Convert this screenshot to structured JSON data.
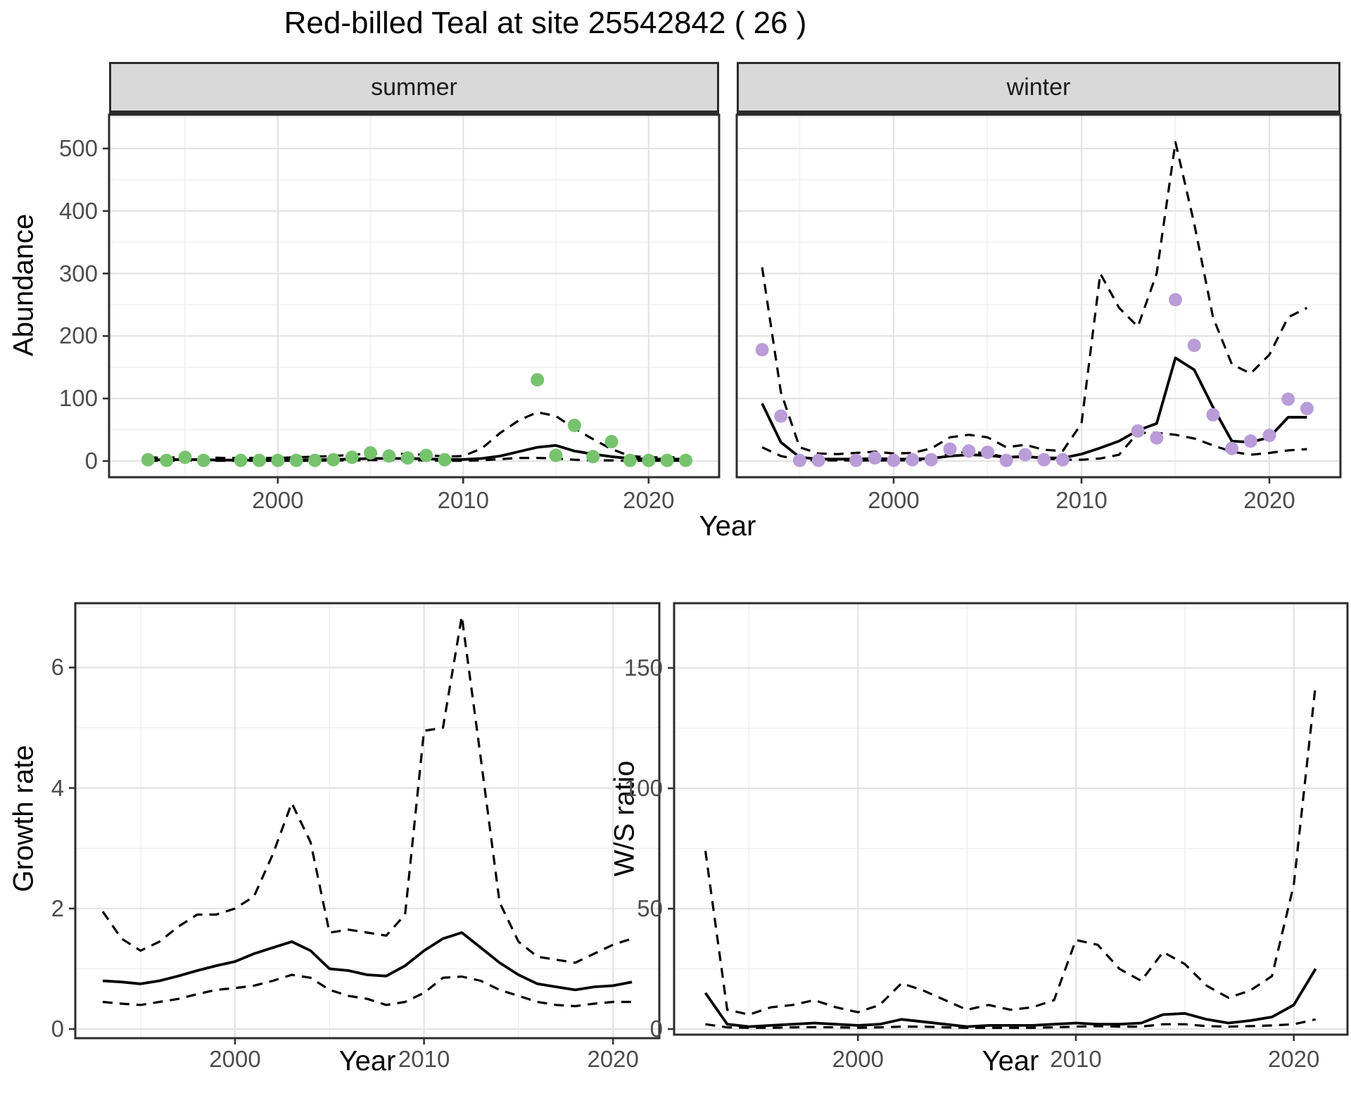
{
  "title": "Red-billed Teal at site 25542842 ( 26 )",
  "xlabel": "Year",
  "colors": {
    "summer_point": "#76c36d",
    "winter_point": "#b99cd8",
    "line": "#000000",
    "strip_bg": "#d9d9d9",
    "panel_border": "#2b2b2b",
    "grid_major": "#e3e3e3",
    "grid_minor": "#f0f0f0",
    "tick_text": "#4d4d4d"
  },
  "chart_data": [
    {
      "type": "line+scatter",
      "facet": "summer",
      "ylabel": "Abundance",
      "xlabel": "Year",
      "xlim": [
        1990.9,
        2023.8
      ],
      "ylim": [
        -26,
        579
      ],
      "xticks": [
        2000,
        2010,
        2020
      ],
      "xticks_minor": [
        1995,
        2005,
        2015
      ],
      "yticks": [
        0,
        100,
        200,
        300,
        400,
        500
      ],
      "yticks_minor": [
        50,
        150,
        250,
        350,
        450,
        550
      ],
      "legend": "none",
      "grid": true,
      "points": {
        "years": [
          1993,
          1994,
          1995,
          1996,
          1998,
          1999,
          2000,
          2001,
          2002,
          2003,
          2004,
          2005,
          2006,
          2007,
          2008,
          2009,
          2014,
          2015,
          2016,
          2017,
          2018,
          2019,
          2020,
          2021,
          2022
        ],
        "values": [
          2,
          1,
          6,
          1,
          1,
          1,
          1,
          1,
          1,
          2,
          6,
          13,
          8,
          5,
          9,
          2,
          130,
          9,
          57,
          7,
          31,
          1,
          1,
          1,
          1
        ]
      },
      "mean": {
        "years": [
          1993,
          1994,
          1995,
          1996,
          1997,
          1998,
          1999,
          2000,
          2001,
          2002,
          2003,
          2004,
          2005,
          2006,
          2007,
          2008,
          2009,
          2010,
          2011,
          2012,
          2013,
          2014,
          2015,
          2016,
          2017,
          2018,
          2019,
          2020,
          2021,
          2022
        ],
        "values": [
          2,
          2,
          2.5,
          2,
          1.5,
          1.5,
          1.5,
          1.5,
          2,
          2,
          2.5,
          3,
          4,
          4,
          4,
          3.5,
          2.5,
          2.5,
          4,
          8,
          15,
          22,
          25,
          16,
          11,
          7,
          4,
          3,
          3,
          3
        ]
      },
      "upper": {
        "years": [
          1993,
          1994,
          1995,
          1996,
          1997,
          1998,
          1999,
          2000,
          2001,
          2002,
          2003,
          2004,
          2005,
          2006,
          2007,
          2008,
          2009,
          2010,
          2011,
          2012,
          2013,
          2014,
          2015,
          2016,
          2017,
          2018,
          2019,
          2020,
          2021,
          2022
        ],
        "values": [
          6,
          5,
          7,
          6,
          5,
          5,
          5,
          5,
          6,
          7,
          8,
          10,
          12,
          12,
          11,
          10,
          7,
          8,
          20,
          45,
          65,
          78,
          72,
          52,
          35,
          19,
          8,
          6,
          6,
          6
        ]
      },
      "lower": {
        "years": [
          1993,
          1994,
          1995,
          1996,
          1997,
          1998,
          1999,
          2000,
          2001,
          2002,
          2003,
          2004,
          2005,
          2006,
          2007,
          2008,
          2009,
          2010,
          2011,
          2012,
          2013,
          2014,
          2015,
          2016,
          2017,
          2018,
          2019,
          2020,
          2021,
          2022
        ],
        "values": [
          0.5,
          0.5,
          1,
          0.5,
          0.5,
          0.5,
          0.5,
          0.5,
          0.5,
          0.5,
          1,
          1,
          1.5,
          1.5,
          1.5,
          1,
          0.5,
          0.5,
          1,
          3,
          5,
          5,
          4,
          2,
          1,
          1,
          0.5,
          0.5,
          0.5,
          0.5
        ]
      }
    },
    {
      "type": "line+scatter",
      "facet": "winter",
      "ylabel": "Abundance",
      "xlabel": "Year",
      "xlim": [
        1991.65,
        2023.8
      ],
      "ylim": [
        -26,
        579
      ],
      "xticks": [
        2000,
        2010,
        2020
      ],
      "xticks_minor": [
        1995,
        2005,
        2015
      ],
      "yticks": [
        0,
        100,
        200,
        300,
        400,
        500
      ],
      "yticks_minor": [
        50,
        150,
        250,
        350,
        450,
        550
      ],
      "legend": "none",
      "grid": true,
      "points": {
        "years": [
          1993,
          1994,
          1995,
          1996,
          1998,
          1999,
          2000,
          2001,
          2002,
          2003,
          2004,
          2005,
          2006,
          2007,
          2008,
          2009,
          2013,
          2014,
          2015,
          2016,
          2017,
          2018,
          2019,
          2020,
          2021,
          2022
        ],
        "values": [
          178,
          72,
          1,
          1,
          1,
          5,
          1,
          2,
          2,
          19,
          16,
          14,
          1,
          10,
          2,
          2,
          48,
          37,
          258,
          185,
          74,
          20,
          32,
          41,
          99,
          84
        ]
      },
      "mean": {
        "years": [
          1993,
          1994,
          1995,
          1996,
          1997,
          1998,
          1999,
          2000,
          2001,
          2002,
          2003,
          2004,
          2005,
          2006,
          2007,
          2008,
          2009,
          2010,
          2011,
          2012,
          2013,
          2014,
          2015,
          2016,
          2017,
          2018,
          2019,
          2020,
          2021,
          2022
        ],
        "values": [
          92,
          30,
          6,
          3,
          3,
          3,
          4,
          3,
          3,
          4,
          8,
          10,
          9,
          6,
          7,
          5,
          5,
          11,
          21,
          32,
          49,
          60,
          165,
          146,
          86,
          32,
          30,
          38,
          70,
          70
        ]
      },
      "upper": {
        "years": [
          1993,
          1994,
          1995,
          1996,
          1997,
          1998,
          1999,
          2000,
          2001,
          2002,
          2003,
          2004,
          2005,
          2006,
          2007,
          2008,
          2009,
          2010,
          2011,
          2012,
          2013,
          2014,
          2015,
          2016,
          2017,
          2018,
          2019,
          2020,
          2021,
          2022
        ],
        "values": [
          310,
          110,
          22,
          12,
          11,
          13,
          15,
          12,
          13,
          20,
          38,
          42,
          38,
          22,
          26,
          18,
          16,
          60,
          300,
          245,
          215,
          300,
          510,
          380,
          230,
          155,
          140,
          170,
          230,
          245
        ]
      },
      "lower": {
        "years": [
          1993,
          1994,
          1995,
          1996,
          1997,
          1998,
          1999,
          2000,
          2001,
          2002,
          2003,
          2004,
          2005,
          2006,
          2007,
          2008,
          2009,
          2010,
          2011,
          2012,
          2013,
          2014,
          2015,
          2016,
          2017,
          2018,
          2019,
          2020,
          2021,
          2022
        ],
        "values": [
          22,
          8,
          2,
          1,
          1,
          1,
          1,
          1,
          1,
          2,
          12,
          15,
          12,
          6,
          8,
          4,
          2,
          2,
          4,
          10,
          45,
          45,
          42,
          36,
          25,
          15,
          10,
          13,
          17,
          19
        ]
      }
    },
    {
      "type": "line",
      "facet": null,
      "ylabel": "Growth rate",
      "xlabel": "Year",
      "xlim": [
        1991.55,
        2022.45
      ],
      "ylim": [
        -0.15,
        7.1
      ],
      "xticks": [
        2000,
        2010,
        2020
      ],
      "xticks_minor": [
        1995,
        2005,
        2015
      ],
      "yticks": [
        0,
        2,
        4,
        6
      ],
      "yticks_minor": [
        1,
        3,
        5,
        7
      ],
      "legend": "none",
      "grid": true,
      "mean": {
        "years": [
          1993,
          1994,
          1995,
          1996,
          1997,
          1998,
          1999,
          2000,
          2001,
          2002,
          2003,
          2004,
          2005,
          2006,
          2007,
          2008,
          2009,
          2010,
          2011,
          2012,
          2013,
          2014,
          2015,
          2016,
          2017,
          2018,
          2019,
          2020,
          2021
        ],
        "values": [
          0.8,
          0.78,
          0.75,
          0.8,
          0.88,
          0.97,
          1.05,
          1.12,
          1.25,
          1.35,
          1.45,
          1.3,
          1.0,
          0.97,
          0.9,
          0.88,
          1.05,
          1.3,
          1.5,
          1.6,
          1.35,
          1.1,
          0.9,
          0.75,
          0.7,
          0.65,
          0.7,
          0.72,
          0.78
        ]
      },
      "upper": {
        "years": [
          1993,
          1994,
          1995,
          1996,
          1997,
          1998,
          1999,
          2000,
          2001,
          2002,
          2003,
          2004,
          2005,
          2006,
          2007,
          2008,
          2009,
          2010,
          2011,
          2012,
          2013,
          2014,
          2015,
          2016,
          2017,
          2018,
          2019,
          2020,
          2021
        ],
        "values": [
          1.95,
          1.5,
          1.3,
          1.45,
          1.7,
          1.9,
          1.9,
          2.0,
          2.2,
          2.9,
          3.75,
          3.1,
          1.6,
          1.65,
          1.6,
          1.55,
          1.9,
          4.95,
          5.0,
          6.85,
          4.5,
          2.1,
          1.45,
          1.2,
          1.15,
          1.1,
          1.25,
          1.4,
          1.5
        ]
      },
      "lower": {
        "years": [
          1993,
          1994,
          1995,
          1996,
          1997,
          1998,
          1999,
          2000,
          2001,
          2002,
          2003,
          2004,
          2005,
          2006,
          2007,
          2008,
          2009,
          2010,
          2011,
          2012,
          2013,
          2014,
          2015,
          2016,
          2017,
          2018,
          2019,
          2020,
          2021
        ],
        "values": [
          0.45,
          0.42,
          0.4,
          0.45,
          0.5,
          0.58,
          0.65,
          0.68,
          0.72,
          0.8,
          0.9,
          0.85,
          0.65,
          0.55,
          0.5,
          0.4,
          0.45,
          0.6,
          0.85,
          0.87,
          0.8,
          0.65,
          0.55,
          0.45,
          0.4,
          0.38,
          0.42,
          0.45,
          0.45
        ]
      }
    },
    {
      "type": "line",
      "facet": null,
      "ylabel": "W/S ratio",
      "xlabel": "Year",
      "xlim": [
        1991.55,
        2022.45
      ],
      "ylim": [
        -2.5,
        177
      ],
      "xticks": [
        2000,
        2010,
        2020
      ],
      "xticks_minor": [
        1995,
        2005,
        2015
      ],
      "yticks": [
        0,
        50,
        100,
        150
      ],
      "yticks_minor": [
        25,
        75,
        125,
        175
      ],
      "legend": "none",
      "grid": true,
      "mean": {
        "years": [
          1993,
          1994,
          1995,
          1996,
          1997,
          1998,
          1999,
          2000,
          2001,
          2002,
          2003,
          2004,
          2005,
          2006,
          2007,
          2008,
          2009,
          2010,
          2011,
          2012,
          2013,
          2014,
          2015,
          2016,
          2017,
          2018,
          2019,
          2020,
          2021
        ],
        "values": [
          15,
          2,
          1,
          1.5,
          2,
          2.5,
          2,
          1.5,
          2,
          4,
          3,
          2,
          1,
          1.5,
          1.5,
          1.5,
          2,
          2.5,
          2,
          2,
          2.5,
          6,
          6.5,
          4,
          2.5,
          3.5,
          5,
          10,
          25
        ]
      },
      "upper": {
        "years": [
          1993,
          1994,
          1995,
          1996,
          1997,
          1998,
          1999,
          2000,
          2001,
          2002,
          2003,
          2004,
          2005,
          2006,
          2007,
          2008,
          2009,
          2010,
          2011,
          2012,
          2013,
          2014,
          2015,
          2016,
          2017,
          2018,
          2019,
          2020,
          2021
        ],
        "values": [
          74,
          8,
          6,
          9,
          10,
          12,
          9,
          7,
          10,
          19,
          16,
          12,
          8,
          10,
          8,
          9,
          12,
          37,
          35,
          25,
          20,
          32,
          27,
          18,
          13,
          16,
          22,
          60,
          143
        ]
      },
      "lower": {
        "years": [
          1993,
          1994,
          1995,
          1996,
          1997,
          1998,
          1999,
          2000,
          2001,
          2002,
          2003,
          2004,
          2005,
          2006,
          2007,
          2008,
          2009,
          2010,
          2011,
          2012,
          2013,
          2014,
          2015,
          2016,
          2017,
          2018,
          2019,
          2020,
          2021
        ],
        "values": [
          2,
          0.7,
          0.5,
          0.5,
          0.7,
          0.8,
          0.7,
          0.5,
          0.7,
          1,
          1,
          0.7,
          0.5,
          0.5,
          0.5,
          0.5,
          0.7,
          1,
          1.2,
          1,
          1,
          2,
          2,
          1.2,
          1,
          1.2,
          1.5,
          2,
          4
        ]
      }
    }
  ]
}
